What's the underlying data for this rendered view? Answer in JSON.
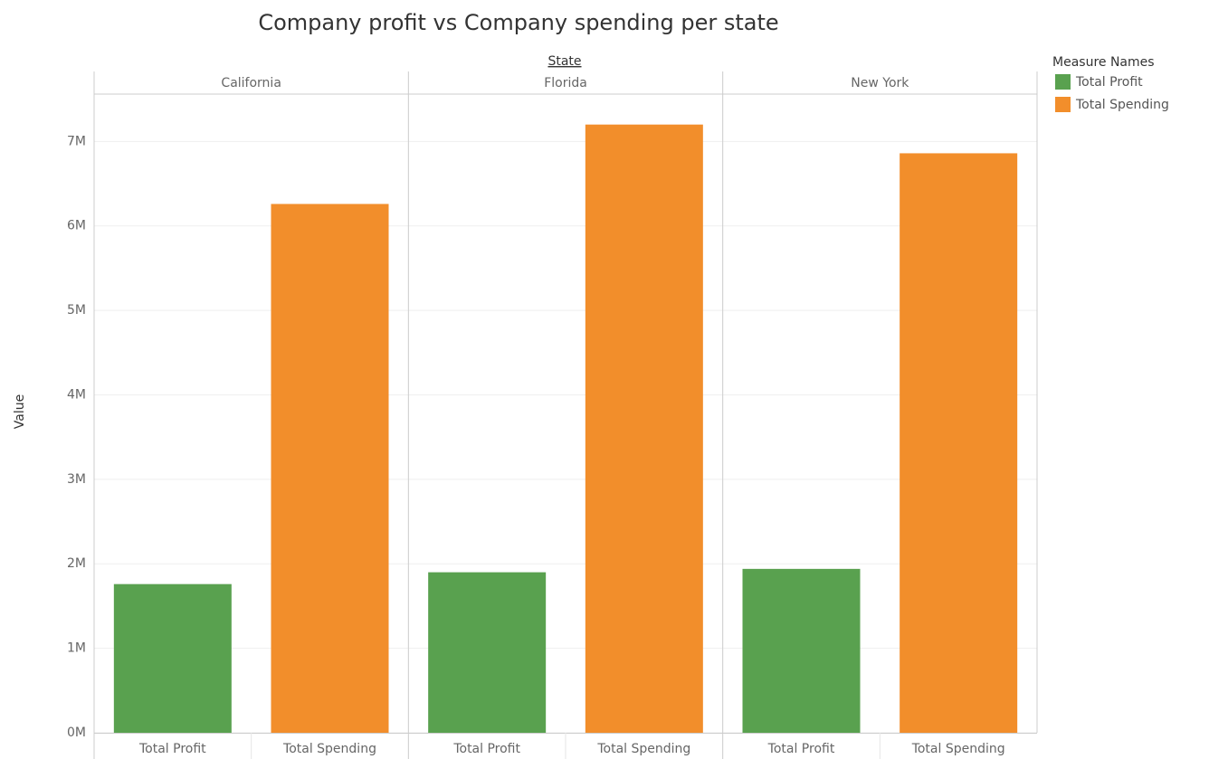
{
  "chart_data": {
    "type": "bar",
    "title": "Company profit vs Company spending per state",
    "facet_label": "State",
    "categories": [
      "California",
      "Florida",
      "New York"
    ],
    "y_label": "Value",
    "legend_title": "Measure Names",
    "series": [
      {
        "name": "Total Profit",
        "color": "#59a14f",
        "values": [
          1760000,
          1900000,
          1940000
        ]
      },
      {
        "name": "Total Spending",
        "color": "#f28e2b",
        "values": [
          6260000,
          7200000,
          6860000
        ]
      }
    ],
    "ylim": [
      0,
      7550000
    ],
    "yticks": [
      {
        "value": 0,
        "label": "0M"
      },
      {
        "value": 1000000,
        "label": "1M"
      },
      {
        "value": 2000000,
        "label": "2M"
      },
      {
        "value": 3000000,
        "label": "3M"
      },
      {
        "value": 4000000,
        "label": "4M"
      },
      {
        "value": 5000000,
        "label": "5M"
      },
      {
        "value": 6000000,
        "label": "6M"
      },
      {
        "value": 7000000,
        "label": "7M"
      }
    ],
    "grid": true
  }
}
